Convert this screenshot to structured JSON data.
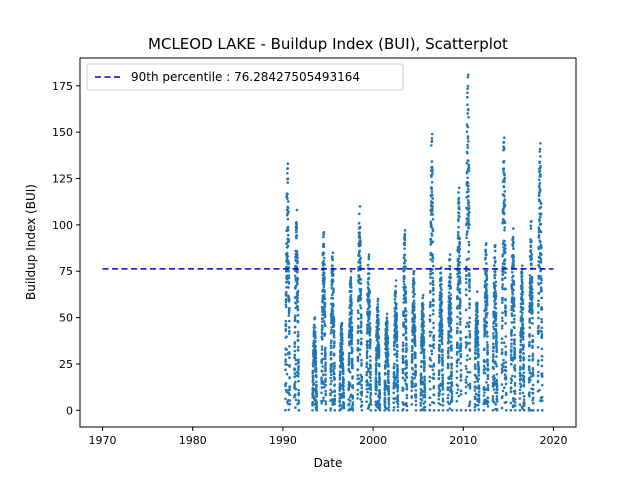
{
  "chart_data": {
    "type": "scatter",
    "title": "MCLEOD LAKE - Buildup Index (BUI), Scatterplot",
    "xlabel": "Date",
    "ylabel": "Buildup Index (BUI)",
    "xlim": [
      1967.5,
      2022.5
    ],
    "ylim": [
      -9,
      190
    ],
    "x_ticks": [
      1970,
      1980,
      1990,
      2000,
      2010,
      2020
    ],
    "y_ticks": [
      0,
      25,
      50,
      75,
      100,
      125,
      150,
      175
    ],
    "grid": false,
    "legend_position": "top-left",
    "point_color": "#1f77b4",
    "reference_line": {
      "label": "90th percentile : 76.28427505493164",
      "y": 76.28427505493164,
      "x_range": [
        1970,
        2020
      ],
      "color": "#0000cc",
      "style": "dashed"
    },
    "seasons": [
      {
        "year": 1990,
        "peak": 133
      },
      {
        "year": 1991,
        "peak": 108
      },
      {
        "year": 1993,
        "peak": 50
      },
      {
        "year": 1994,
        "peak": 96
      },
      {
        "year": 1995,
        "peak": 85
      },
      {
        "year": 1996,
        "peak": 47
      },
      {
        "year": 1997,
        "peak": 75
      },
      {
        "year": 1998,
        "peak": 110
      },
      {
        "year": 1999,
        "peak": 84
      },
      {
        "year": 2000,
        "peak": 60
      },
      {
        "year": 2001,
        "peak": 52
      },
      {
        "year": 2002,
        "peak": 70
      },
      {
        "year": 2003,
        "peak": 97
      },
      {
        "year": 2004,
        "peak": 75
      },
      {
        "year": 2005,
        "peak": 62
      },
      {
        "year": 2006,
        "peak": 149
      },
      {
        "year": 2007,
        "peak": 77
      },
      {
        "year": 2008,
        "peak": 84
      },
      {
        "year": 2009,
        "peak": 120
      },
      {
        "year": 2010,
        "peak": 181
      },
      {
        "year": 2011,
        "peak": 64
      },
      {
        "year": 2012,
        "peak": 90
      },
      {
        "year": 2013,
        "peak": 89
      },
      {
        "year": 2014,
        "peak": 147
      },
      {
        "year": 2015,
        "peak": 98
      },
      {
        "year": 2016,
        "peak": 78
      },
      {
        "year": 2017,
        "peak": 102
      },
      {
        "year": 2018,
        "peak": 144
      }
    ]
  }
}
